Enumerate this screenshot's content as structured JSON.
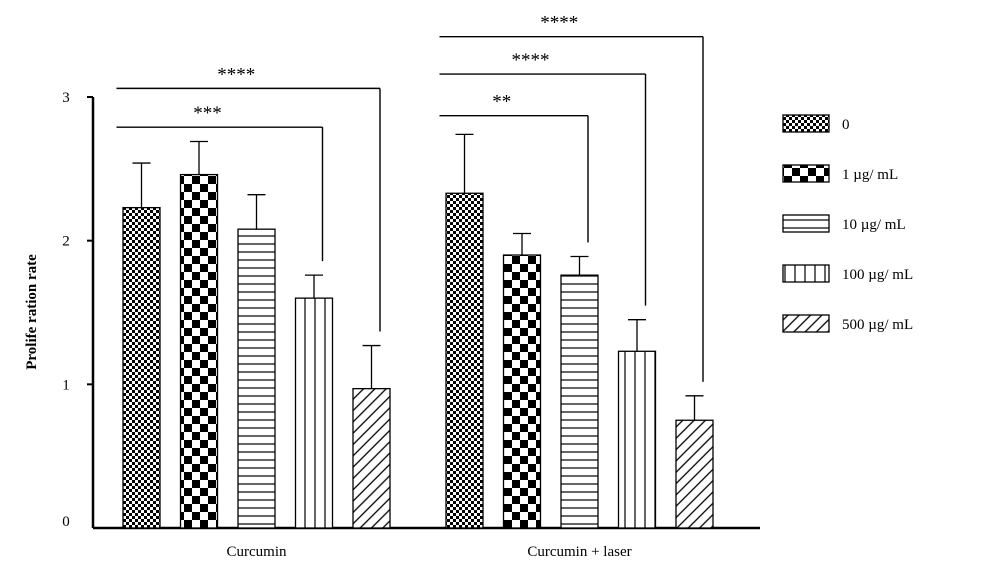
{
  "chart_data": {
    "type": "bar",
    "ylabel": "Prolife ration rate",
    "ylim": [
      0,
      3
    ],
    "yticks": [
      "0",
      "1",
      "2",
      "3"
    ],
    "grid": false,
    "legend_position": "right",
    "categories": [
      "Curcumin",
      "Curcumin + laser"
    ],
    "series": [
      {
        "name": "0",
        "pattern": "fine-check",
        "values": [
          2.23,
          2.33
        ],
        "errors": [
          0.31,
          0.41
        ]
      },
      {
        "name": "1 µg/ mL",
        "pattern": "coarse-check",
        "values": [
          2.46,
          1.9
        ],
        "errors": [
          0.23,
          0.15
        ]
      },
      {
        "name": "10 µg/ mL",
        "pattern": "horizontal-lines",
        "values": [
          2.08,
          1.76
        ],
        "errors": [
          0.24,
          0.13
        ]
      },
      {
        "name": "100 µg/ mL",
        "pattern": "vertical-lines",
        "values": [
          1.6,
          1.23
        ],
        "errors": [
          0.16,
          0.22
        ]
      },
      {
        "name": "500 µg/ mL",
        "pattern": "diagonal-lines",
        "values": [
          0.97,
          0.75
        ],
        "errors": [
          0.3,
          0.17
        ]
      }
    ],
    "annotations": [
      {
        "group": 0,
        "from_series": 0,
        "to_series": 3,
        "label": "***",
        "level": 2.79
      },
      {
        "group": 0,
        "from_series": 0,
        "to_series": 4,
        "label": "****",
        "level": 3.06
      },
      {
        "group": 1,
        "from_series": 0,
        "to_series": 2,
        "label": "**",
        "level": 2.87
      },
      {
        "group": 1,
        "from_series": 0,
        "to_series": 3,
        "label": "****",
        "level": 3.16
      },
      {
        "group": 1,
        "from_series": 0,
        "to_series": 4,
        "label": "****",
        "level": 3.42
      }
    ]
  }
}
